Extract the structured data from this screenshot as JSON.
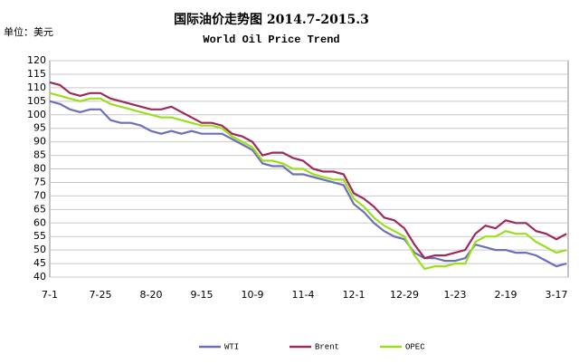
{
  "chart_data": {
    "type": "line",
    "title": "国际油价走势图 2014.7-2015.3",
    "subtitle": "World Oil Price Trend",
    "y_label": "单位：美元",
    "categories": [
      "7-1",
      null,
      null,
      null,
      null,
      "7-25",
      null,
      null,
      null,
      null,
      "8-20",
      null,
      null,
      null,
      null,
      "9-15",
      null,
      null,
      null,
      null,
      "10-9",
      null,
      null,
      null,
      null,
      "11-4",
      null,
      null,
      null,
      null,
      "12-1",
      null,
      null,
      null,
      null,
      "12-29",
      null,
      null,
      null,
      null,
      "1-23",
      null,
      null,
      null,
      null,
      "2-19",
      null,
      null,
      null,
      null,
      "3-17",
      null
    ],
    "series": [
      {
        "name": "WTI",
        "color": "#6b70b8",
        "values": [
          105,
          104,
          102,
          101,
          102,
          102,
          98,
          97,
          97,
          96,
          94,
          93,
          94,
          93,
          94,
          93,
          93,
          93,
          91,
          89,
          87,
          82,
          81,
          81,
          78,
          78,
          77,
          76,
          75,
          74,
          67,
          64,
          60,
          57,
          55,
          54,
          49,
          47,
          47,
          46,
          46,
          47,
          52,
          51,
          50,
          50,
          49,
          49,
          48,
          46,
          44,
          45
        ]
      },
      {
        "name": "Brent",
        "color": "#9c2a5c",
        "values": [
          112,
          111,
          108,
          107,
          108,
          108,
          106,
          105,
          104,
          103,
          102,
          102,
          103,
          101,
          99,
          97,
          97,
          96,
          93,
          92,
          90,
          85,
          86,
          86,
          84,
          83,
          80,
          79,
          79,
          78,
          71,
          69,
          66,
          62,
          61,
          58,
          52,
          47,
          48,
          48,
          49,
          50,
          56,
          59,
          58,
          61,
          60,
          60,
          57,
          56,
          54,
          56
        ]
      },
      {
        "name": "OPEC",
        "color": "#99e01a",
        "values": [
          108,
          107,
          106,
          105,
          106,
          106,
          104,
          103,
          102,
          101,
          100,
          99,
          99,
          98,
          97,
          96,
          96,
          95,
          92,
          90,
          88,
          83,
          83,
          82,
          80,
          80,
          78,
          77,
          76,
          76,
          69,
          66,
          62,
          59,
          57,
          55,
          48,
          43,
          44,
          44,
          45,
          45,
          53,
          55,
          55,
          57,
          56,
          56,
          53,
          51,
          49,
          50
        ]
      }
    ],
    "ylim": [
      40,
      120
    ],
    "yticks": [
      40,
      45,
      50,
      55,
      60,
      65,
      70,
      75,
      80,
      85,
      90,
      95,
      100,
      105,
      110,
      115,
      120
    ],
    "grid": true,
    "legend": "bottom"
  }
}
